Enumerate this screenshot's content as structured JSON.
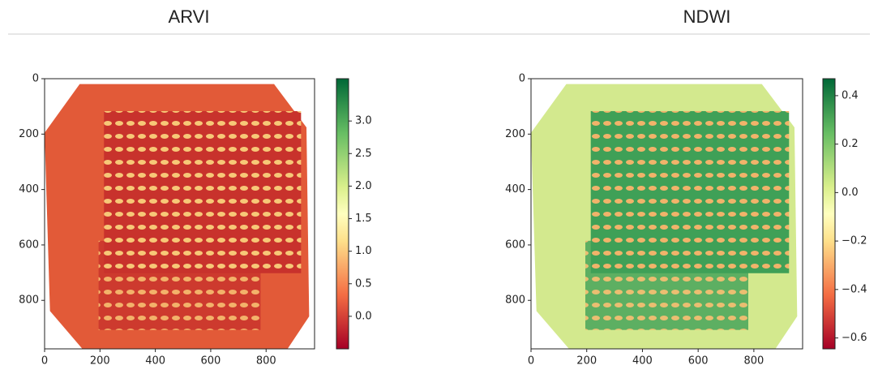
{
  "chart_data": [
    {
      "type": "heatmap",
      "title": "ARVI",
      "colormap": "RdYlGn",
      "xlim": [
        0,
        975
      ],
      "ylim": [
        975,
        0
      ],
      "xticks": [
        0,
        200,
        400,
        600,
        800
      ],
      "yticks": [
        0,
        200,
        400,
        600,
        800
      ],
      "colorbar": {
        "ylim": [
          -0.5,
          3.65
        ],
        "ticks": [
          {
            "value": 0,
            "label": "0.0"
          },
          0.5,
          {
            "value": 1,
            "label": "1.0"
          },
          1.5,
          {
            "value": 2,
            "label": "2.0"
          },
          2.5,
          {
            "value": 3,
            "label": "3.0"
          }
        ]
      }
    },
    {
      "type": "heatmap",
      "title": "NDWI",
      "colormap": "RdYlGn",
      "xlim": [
        0,
        975
      ],
      "ylim": [
        975,
        0
      ],
      "xticks": [
        0,
        200,
        400,
        600,
        800
      ],
      "yticks": [
        0,
        200,
        400,
        600,
        800
      ],
      "colorbar": {
        "ylim": [
          -0.645,
          0.47
        ],
        "ticks": [
          {
            "value": -0.6,
            "label": "−0.6"
          },
          {
            "value": -0.4,
            "label": "−0.4"
          },
          {
            "value": -0.2,
            "label": "−0.2"
          },
          {
            "value": 0,
            "label": "0.0"
          },
          0.2,
          0.4
        ]
      }
    }
  ]
}
